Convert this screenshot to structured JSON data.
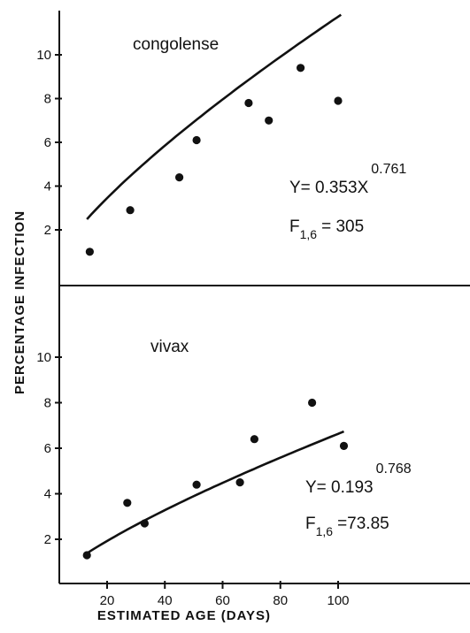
{
  "chart_data": [
    {
      "type": "scatter",
      "title": "congolense",
      "ylabel": "PERCENTAGE INFECTION",
      "xlabel": "ESTIMATED AGE (DAYS)",
      "xlim": [
        0,
        130
      ],
      "ylim": [
        0,
        11
      ],
      "yticks": [
        2,
        4,
        6,
        8,
        10
      ],
      "grid": false,
      "series": [
        {
          "x": [
            14,
            28,
            45,
            51,
            69,
            76,
            87,
            100
          ],
          "y": [
            1.0,
            2.9,
            4.4,
            6.1,
            7.8,
            7.0,
            9.4,
            7.9
          ]
        }
      ],
      "fit": {
        "coefficient": 0.353,
        "exponent": 0.761,
        "x_range": [
          13,
          101
        ]
      },
      "equation": {
        "lhs": "Y= 0.353X",
        "exponent": "0.761"
      },
      "stat": {
        "base": "F",
        "subscript": "1,6",
        "value": "= 305"
      }
    },
    {
      "type": "scatter",
      "title": "vivax",
      "ylabel": "PERCENTAGE INFECTION",
      "xlabel": "ESTIMATED AGE (DAYS)",
      "xlim": [
        0,
        130
      ],
      "ylim": [
        0,
        11
      ],
      "yticks": [
        2,
        4,
        6,
        8,
        10
      ],
      "xticks": [
        20,
        40,
        60,
        80,
        100
      ],
      "grid": false,
      "series": [
        {
          "x": [
            13,
            27,
            33,
            51,
            66,
            71,
            91,
            102
          ],
          "y": [
            1.3,
            3.6,
            2.7,
            4.4,
            4.5,
            6.4,
            8.0,
            6.1
          ]
        }
      ],
      "fit": {
        "coefficient": 0.193,
        "exponent": 0.768,
        "x_range": [
          12,
          102
        ]
      },
      "equation": {
        "lhs": "Y= 0.193",
        "exponent": "0.768"
      },
      "stat": {
        "base": "F",
        "subscript": "1,6",
        "value": "=73.85"
      }
    }
  ],
  "axis_titles": {
    "y": "PERCENTAGE INFECTION",
    "x": "ESTIMATED AGE (DAYS)"
  }
}
